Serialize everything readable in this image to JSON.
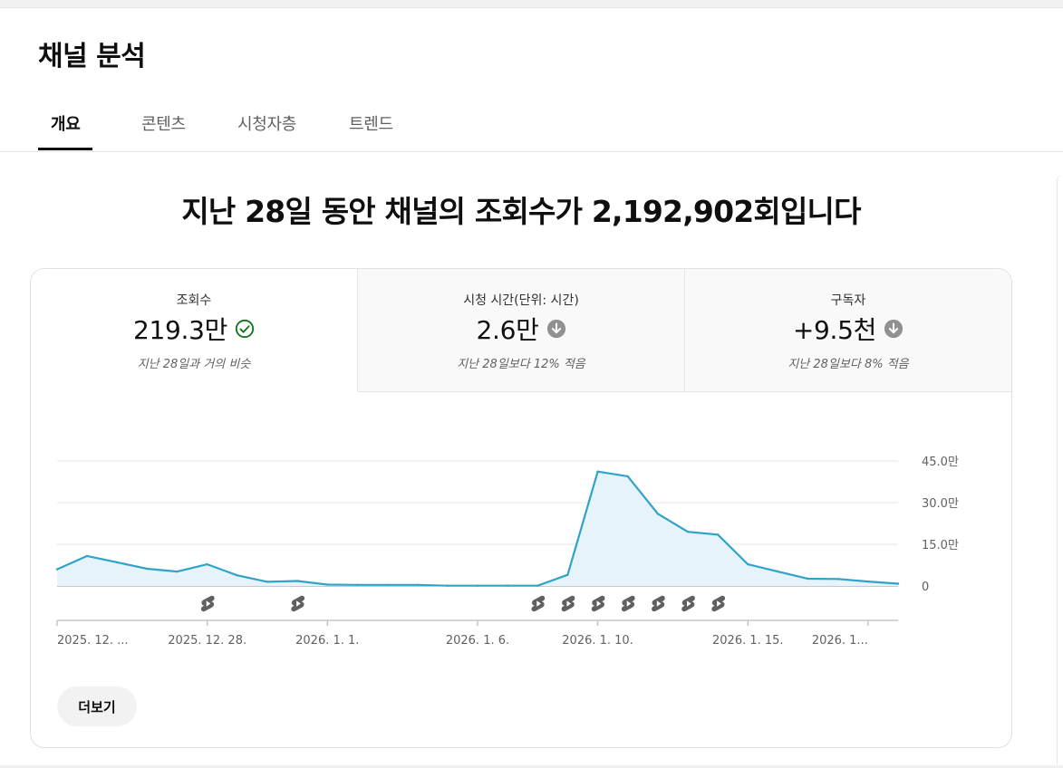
{
  "header": {
    "title": "채널 분석"
  },
  "tabs": [
    {
      "label": "개요",
      "active": true
    },
    {
      "label": "콘텐츠",
      "active": false
    },
    {
      "label": "시청자층",
      "active": false
    },
    {
      "label": "트렌드",
      "active": false
    }
  ],
  "headline": "지난 28일 동안 채널의 조회수가 2,192,902회입니다",
  "metrics": [
    {
      "label": "조회수",
      "value": "219.3만",
      "icon": "check-circle-icon",
      "note": "지난 28일과 거의 비슷"
    },
    {
      "label": "시청 시간(단위: 시간)",
      "value": "2.6만",
      "icon": "arrow-down-circle-icon",
      "note": "지난 28일보다 12% 적음"
    },
    {
      "label": "구독자",
      "value": "+9.5천",
      "icon": "arrow-down-circle-icon",
      "note": "지난 28일보다 8% 적음"
    }
  ],
  "colors": {
    "line": "#2fa3c8",
    "fill": "#e6f3fa",
    "check": "#107516",
    "down": "#909090"
  },
  "chart_data": {
    "type": "area",
    "y_tick_labels": [
      "45.0만",
      "30.0만",
      "15.0만",
      "0"
    ],
    "y_ticks": [
      450000,
      300000,
      150000,
      0
    ],
    "ylim": [
      0,
      450000
    ],
    "x_tick_labels": [
      "2025. 12. ...",
      "2025. 12. 28.",
      "2026. 1. 1.",
      "2026. 1. 6.",
      "2026. 1. 10.",
      "2026. 1. 15.",
      "2026. 1..."
    ],
    "x_tick_days": [
      0,
      5,
      9,
      14,
      18,
      23,
      27
    ],
    "series": [
      {
        "values": [
          60000,
          108000,
          85000,
          62000,
          52000,
          78000,
          38000,
          15000,
          18000,
          5000,
          4000,
          4000,
          4000,
          1000,
          1000,
          1000,
          1000,
          40000,
          412000,
          395000,
          260000,
          195000,
          185000,
          78000,
          52000,
          26000,
          25000,
          16000,
          8000
        ]
      }
    ],
    "shorts_marker_days": [
      5,
      8,
      16,
      17,
      18,
      19,
      20,
      21,
      22
    ],
    "grid": true
  },
  "more_button": {
    "label": "더보기"
  }
}
